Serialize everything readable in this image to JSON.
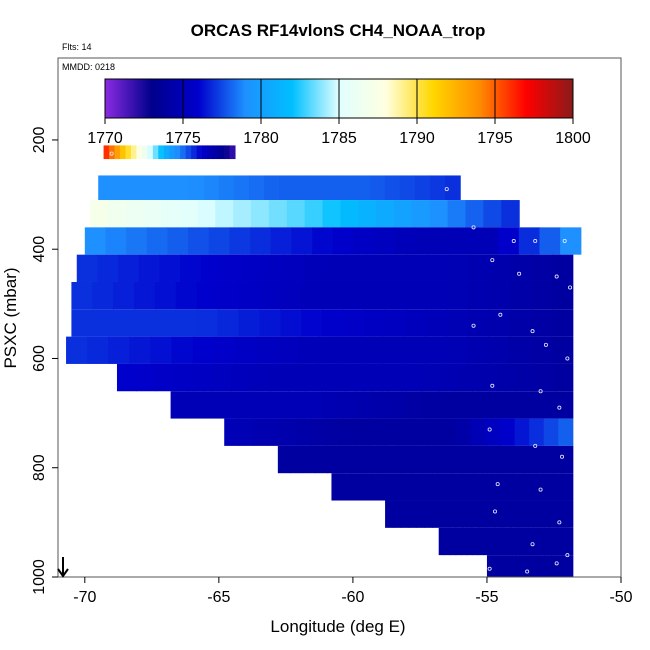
{
  "chart_data": {
    "type": "heatmap",
    "title": "ORCAS RF14vlonS CH4_NOAA_trop",
    "annotations": {
      "flts": "Flts: 14",
      "mmdd": "MMDD: 0218"
    },
    "xlabel": "Longitude (deg E)",
    "ylabel": "PSXC (mbar)",
    "xlim": [
      -71,
      -50
    ],
    "ylim": [
      1000,
      50
    ],
    "y_reversed": true,
    "x_ticks": [
      -70,
      -65,
      -60,
      -55,
      -50
    ],
    "y_ticks": [
      200,
      400,
      600,
      800,
      1000
    ],
    "colorbar": {
      "min": 1770,
      "max": 1800,
      "ticks": [
        1770,
        1775,
        1780,
        1785,
        1790,
        1795,
        1800
      ],
      "colors": [
        "#8a2be2",
        "#00008b",
        "#0000cd",
        "#1e90ff",
        "#00bfff",
        "#e0ffff",
        "#ffffe0",
        "#ffd700",
        "#ff8c00",
        "#ff0000",
        "#8b1a1a"
      ]
    },
    "bands": [
      {
        "p": [
          210,
          235
        ],
        "lon": [
          -69.3,
          -64.4
        ],
        "c": [
          1796,
          1788,
          1780,
          1776,
          1772
        ]
      },
      {
        "p": [
          265,
          310
        ],
        "lon": [
          -69.5,
          -56.0
        ],
        "c": [
          1779,
          1779,
          1778,
          1778,
          1777
        ]
      },
      {
        "p": [
          310,
          360
        ],
        "lon": [
          -69.8,
          -53.8
        ],
        "c": [
          1787,
          1785,
          1783,
          1780,
          1777
        ]
      },
      {
        "p": [
          360,
          410
        ],
        "lon": [
          -70.0,
          -51.5
        ],
        "c": [
          1779,
          1778,
          1777,
          1776,
          1775,
          1775,
          1779
        ]
      },
      {
        "p": [
          410,
          460
        ],
        "lon": [
          -70.3,
          -51.8
        ],
        "c": [
          1777,
          1776,
          1775,
          1775,
          1774
        ]
      },
      {
        "p": [
          460,
          510
        ],
        "lon": [
          -70.5,
          -51.8
        ],
        "c": [
          1777,
          1776,
          1775,
          1775,
          1774
        ]
      },
      {
        "p": [
          510,
          560
        ],
        "lon": [
          -70.5,
          -51.8
        ],
        "c": [
          1777,
          1777,
          1776,
          1775,
          1774
        ]
      },
      {
        "p": [
          560,
          610
        ],
        "lon": [
          -70.7,
          -51.8
        ],
        "c": [
          1777,
          1776,
          1775,
          1775,
          1774
        ]
      },
      {
        "p": [
          610,
          660
        ],
        "lon": [
          -68.8,
          -51.8
        ],
        "c": [
          1776,
          1775,
          1775,
          1774
        ]
      },
      {
        "p": [
          660,
          710
        ],
        "lon": [
          -66.8,
          -51.8
        ],
        "c": [
          1775,
          1775,
          1774,
          1774
        ]
      },
      {
        "p": [
          710,
          760
        ],
        "lon": [
          -64.8,
          -51.8
        ],
        "c": [
          1775,
          1774,
          1774,
          1778
        ]
      },
      {
        "p": [
          760,
          810
        ],
        "lon": [
          -62.8,
          -51.8
        ],
        "c": [
          1774,
          1774,
          1774
        ]
      },
      {
        "p": [
          810,
          860
        ],
        "lon": [
          -60.8,
          -51.8
        ],
        "c": [
          1774,
          1774,
          1774
        ]
      },
      {
        "p": [
          860,
          910
        ],
        "lon": [
          -58.8,
          -51.8
        ],
        "c": [
          1774,
          1774,
          1774
        ]
      },
      {
        "p": [
          910,
          960
        ],
        "lon": [
          -56.8,
          -51.8
        ],
        "c": [
          1774,
          1774,
          1774
        ]
      },
      {
        "p": [
          960,
          1000
        ],
        "lon": [
          -55.0,
          -51.8
        ],
        "c": [
          1774,
          1774
        ]
      }
    ],
    "flight_points": [
      [
        -69.0,
        225
      ],
      [
        -56.5,
        290
      ],
      [
        -55.5,
        360
      ],
      [
        -54.0,
        385
      ],
      [
        -53.2,
        385
      ],
      [
        -52.1,
        385
      ],
      [
        -54.8,
        420
      ],
      [
        -53.8,
        445
      ],
      [
        -52.4,
        450
      ],
      [
        -51.9,
        470
      ],
      [
        -55.5,
        540
      ],
      [
        -54.5,
        520
      ],
      [
        -53.3,
        550
      ],
      [
        -52.8,
        575
      ],
      [
        -52.0,
        600
      ],
      [
        -54.8,
        650
      ],
      [
        -53.0,
        660
      ],
      [
        -52.3,
        690
      ],
      [
        -54.9,
        730
      ],
      [
        -53.2,
        760
      ],
      [
        -52.2,
        780
      ],
      [
        -54.6,
        830
      ],
      [
        -53.0,
        840
      ],
      [
        -52.3,
        900
      ],
      [
        -54.7,
        880
      ],
      [
        -53.3,
        940
      ],
      [
        -52.0,
        960
      ],
      [
        -54.9,
        985
      ],
      [
        -53.5,
        990
      ],
      [
        -52.4,
        975
      ]
    ]
  }
}
